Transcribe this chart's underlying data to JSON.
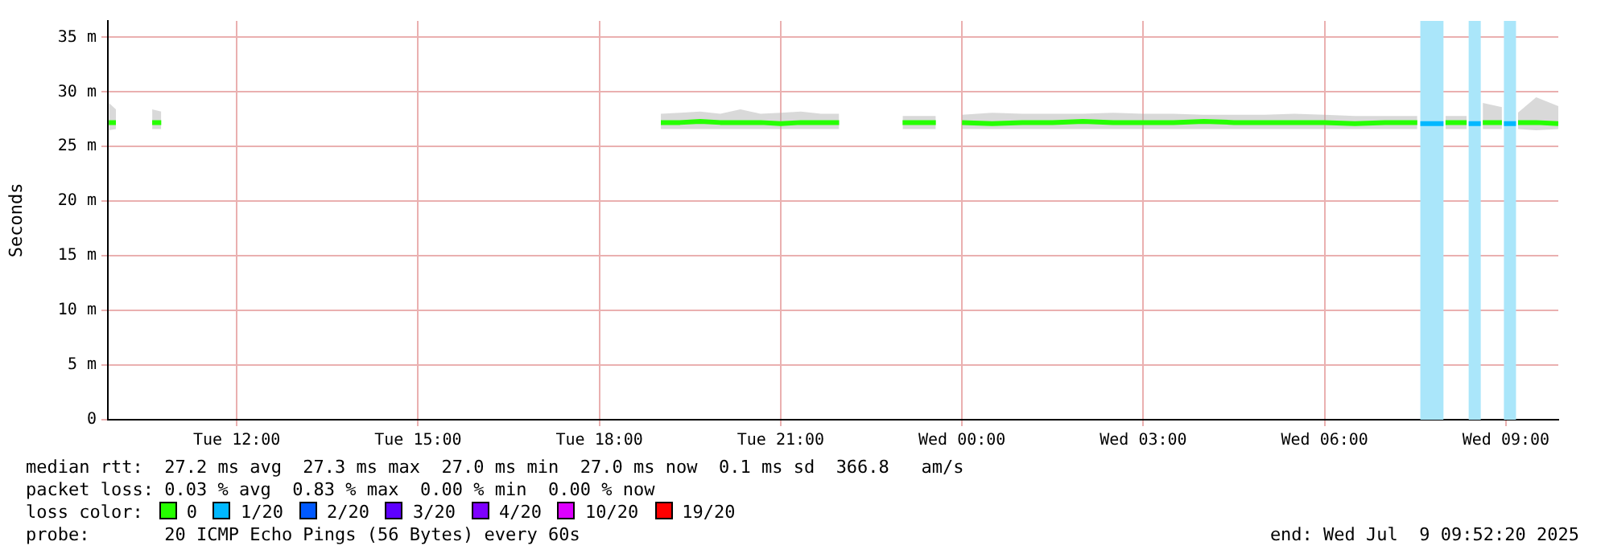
{
  "chart_data": {
    "type": "line",
    "ylabel": "Seconds",
    "legend_title": "loss color:",
    "legend": "bottom",
    "grid": true,
    "marker": "none",
    "line_style": "solid",
    "xlim": [
      "2025-07-08T09:52",
      "2025-07-09T09:52"
    ],
    "xticks": [
      {
        "value": "2025-07-08T12:00",
        "label": "Tue 12:00"
      },
      {
        "value": "2025-07-08T15:00",
        "label": "Tue 15:00"
      },
      {
        "value": "2025-07-08T18:00",
        "label": "Tue 18:00"
      },
      {
        "value": "2025-07-08T21:00",
        "label": "Tue 21:00"
      },
      {
        "value": "2025-07-09T00:00",
        "label": "Wed 00:00"
      },
      {
        "value": "2025-07-09T03:00",
        "label": "Wed 03:00"
      },
      {
        "value": "2025-07-09T06:00",
        "label": "Wed 06:00"
      },
      {
        "value": "2025-07-09T09:00",
        "label": "Wed 09:00"
      }
    ],
    "ylim": [
      0,
      36.5
    ],
    "yticks": [
      0,
      {
        "value": 5,
        "label": "5 m"
      },
      {
        "value": 10,
        "label": "10 m"
      },
      {
        "value": 15,
        "label": "15 m"
      },
      {
        "value": 20,
        "label": "20 m"
      },
      {
        "value": 25,
        "label": "25 m"
      },
      {
        "value": 30,
        "label": "30 m"
      },
      {
        "value": 35,
        "label": "35 m"
      }
    ],
    "bands": [
      {
        "axis": "x",
        "from": "2025-07-09T07:35",
        "to": "2025-07-09T07:58",
        "color": "#aae6fa"
      },
      {
        "axis": "x",
        "from": "2025-07-09T08:23",
        "to": "2025-07-09T08:35",
        "color": "#aae6fa"
      },
      {
        "axis": "x",
        "from": "2025-07-09T08:58",
        "to": "2025-07-09T09:10",
        "color": "#aae6fa"
      }
    ],
    "series": [
      {
        "name": "0",
        "color": "#26ff00",
        "x": [
          "2025-07-08T09:53",
          "2025-07-08T10:00",
          "2025-07-08T10:15",
          "2025-07-08T10:36",
          "2025-07-08T10:45",
          "2025-07-08T11:00",
          "2025-07-08T19:01",
          "2025-07-08T19:20",
          "2025-07-08T19:40",
          "2025-07-08T20:00",
          "2025-07-08T20:20",
          "2025-07-08T20:40",
          "2025-07-08T21:00",
          "2025-07-08T21:20",
          "2025-07-08T21:40",
          "2025-07-08T21:58",
          "2025-07-08T22:20",
          "2025-07-08T23:01",
          "2025-07-08T23:34",
          "2025-07-08T23:45",
          "2025-07-09T00:00",
          "2025-07-09T00:30",
          "2025-07-09T01:00",
          "2025-07-09T01:30",
          "2025-07-09T02:00",
          "2025-07-09T02:30",
          "2025-07-09T03:00",
          "2025-07-09T03:30",
          "2025-07-09T04:00",
          "2025-07-09T04:30",
          "2025-07-09T05:00",
          "2025-07-09T05:30",
          "2025-07-09T06:00",
          "2025-07-09T06:30",
          "2025-07-09T07:00",
          "2025-07-09T07:32",
          "2025-07-09T07:45",
          "2025-07-09T08:00",
          "2025-07-09T08:21",
          "2025-07-09T08:28",
          "2025-07-09T08:37",
          "2025-07-09T08:56",
          "2025-07-09T09:04",
          "2025-07-09T09:12",
          "2025-07-09T09:30",
          "2025-07-09T09:52"
        ],
        "values": [
          27.2,
          27.2,
          null,
          27.2,
          27.2,
          null,
          27.2,
          27.2,
          27.3,
          27.2,
          27.2,
          27.2,
          27.1,
          27.2,
          27.2,
          27.2,
          null,
          27.2,
          27.2,
          null,
          27.2,
          27.1,
          27.2,
          27.2,
          27.3,
          27.2,
          27.2,
          27.2,
          27.3,
          27.2,
          27.2,
          27.2,
          27.2,
          27.1,
          27.2,
          27.2,
          null,
          27.2,
          27.2,
          null,
          27.2,
          27.2,
          null,
          27.2,
          27.2,
          27.1
        ],
        "lower": [
          26.5,
          26.6,
          null,
          26.6,
          26.6,
          null,
          26.6,
          26.6,
          26.6,
          26.6,
          26.6,
          26.6,
          26.6,
          26.6,
          26.6,
          26.6,
          null,
          26.6,
          26.6,
          null,
          26.6,
          26.6,
          26.6,
          26.6,
          26.6,
          26.6,
          26.6,
          26.6,
          26.6,
          26.6,
          26.6,
          26.6,
          26.6,
          26.6,
          26.6,
          26.6,
          null,
          26.6,
          26.6,
          null,
          26.6,
          26.6,
          null,
          26.6,
          26.5,
          26.6
        ],
        "upper": [
          29.0,
          28.4,
          null,
          28.4,
          28.2,
          null,
          28.0,
          28.1,
          28.2,
          28.0,
          28.4,
          28.0,
          28.1,
          28.2,
          28.0,
          28.0,
          null,
          27.8,
          27.8,
          null,
          27.9,
          28.1,
          28.0,
          28.0,
          28.0,
          28.1,
          28.0,
          28.0,
          27.9,
          27.9,
          27.9,
          28.0,
          27.9,
          27.8,
          27.8,
          27.8,
          null,
          27.8,
          27.8,
          null,
          29.0,
          28.6,
          null,
          28.1,
          29.5,
          28.7
        ]
      },
      {
        "name": "1/20",
        "color": "#00b8ff",
        "x": [
          "2025-07-09T07:35",
          "2025-07-09T07:58",
          "2025-07-09T08:10",
          "2025-07-09T08:23",
          "2025-07-09T08:35",
          "2025-07-09T08:45",
          "2025-07-09T08:58",
          "2025-07-09T09:10"
        ],
        "values": [
          27.1,
          27.1,
          null,
          27.1,
          27.1,
          null,
          27.1,
          27.1
        ]
      },
      {
        "name": "2/20",
        "color": "#0059ff"
      },
      {
        "name": "3/20",
        "color": "#5e00ff"
      },
      {
        "name": "4/20",
        "color": "#7e00ff"
      },
      {
        "name": "10/20",
        "color": "#dd00ff"
      },
      {
        "name": "19/20",
        "color": "#ff0000"
      }
    ],
    "annotations": [
      "median rtt:  27.2 ms avg  27.3 ms max  27.0 ms min  27.0 ms now  0.1 ms sd  366.8   am/s",
      "packet loss: 0.03 % avg  0.83 % max  0.00 % min  0.00 % now",
      "probe:       20 ICMP Echo Pings (56 Bytes) every 60s",
      "end: Wed Jul  9 09:52:20 2025"
    ]
  }
}
